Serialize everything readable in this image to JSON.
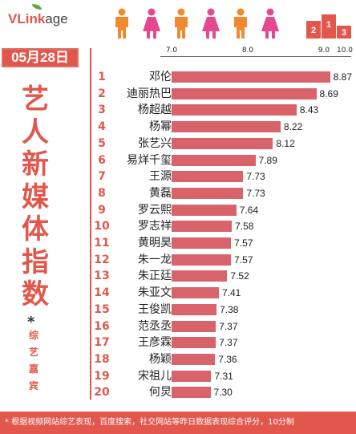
{
  "header": {
    "brand_main": "VLink",
    "brand_tail": "age",
    "date": "05月28日"
  },
  "title_chars": [
    "艺",
    "人",
    "新",
    "媒",
    "体",
    "指",
    "数"
  ],
  "subtitle_star": "*",
  "subtitle_chars": [
    "综",
    "艺",
    "嘉",
    "宾"
  ],
  "footer_note": "* 根据视频网站综艺表现，百度搜索，社交网站等昨日数据表现综合评分，10分制",
  "chart_data": {
    "type": "bar",
    "orientation": "horizontal",
    "x_ticks": [
      "7.0",
      "8.0",
      "9.0",
      "10.0"
    ],
    "xlim": [
      7.0,
      10.0
    ],
    "categories": [
      "邓伦",
      "迪丽热巴",
      "杨超越",
      "杨幂",
      "张艺兴",
      "易烊千玺",
      "王源",
      "黄磊",
      "罗云熙",
      "罗志祥",
      "黄明昊",
      "朱一龙",
      "朱正廷",
      "朱亚文",
      "王俊凯",
      "范丞丞",
      "王彦霖",
      "杨颖",
      "宋祖儿",
      "何炅"
    ],
    "ranks": [
      "1",
      "2",
      "3",
      "4",
      "5",
      "6",
      "7",
      "8",
      "9",
      "10",
      "11",
      "12",
      "13",
      "14",
      "15",
      "16",
      "17",
      "18",
      "19",
      "20"
    ],
    "values": [
      8.87,
      8.69,
      8.43,
      8.22,
      8.12,
      7.89,
      7.73,
      7.73,
      7.64,
      7.58,
      7.57,
      7.57,
      7.52,
      7.41,
      7.38,
      7.37,
      7.37,
      7.36,
      7.31,
      7.3
    ],
    "bar_color": "#d9636a",
    "rank_color": "#e2574c"
  },
  "colors": {
    "accent": "#e2574c",
    "icon_orange": "#f08a2c",
    "icon_pink": "#e5488f"
  }
}
